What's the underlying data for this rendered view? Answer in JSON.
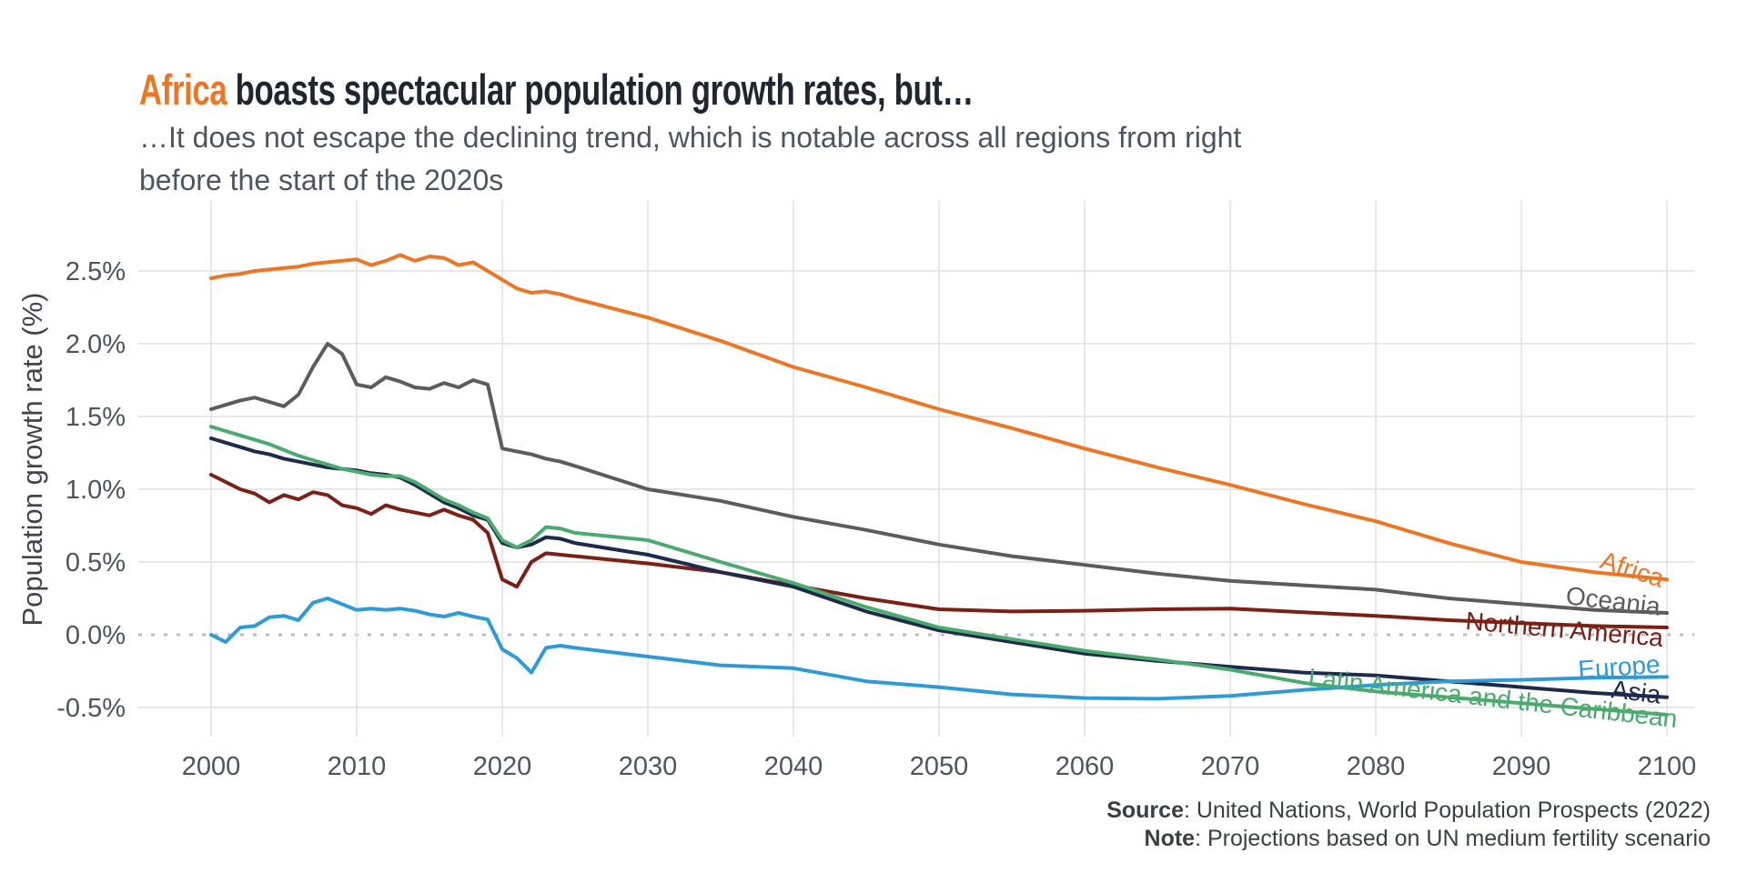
{
  "chart_data": {
    "type": "line",
    "title": {
      "highlight": "Africa",
      "rest": " boasts spectacular population growth rates, but…"
    },
    "subtitle_lines": [
      "…It does not escape the declining trend, which is notable across all regions from right",
      "before the start of the 2020s"
    ],
    "ylabel": "Population growth rate (%)",
    "xlabel": "",
    "x_range": [
      2000,
      2100
    ],
    "ylim": [
      -0.6,
      2.75
    ],
    "grid": true,
    "zero_line_value": 0.0,
    "legend_position": "labels at end of lines",
    "x_ticks": [
      {
        "value": 2000,
        "label": "2000"
      },
      {
        "value": 2010,
        "label": "2010"
      },
      {
        "value": 2020,
        "label": "2020"
      },
      {
        "value": 2030,
        "label": "2030"
      },
      {
        "value": 2040,
        "label": "2040"
      },
      {
        "value": 2050,
        "label": "2050"
      },
      {
        "value": 2060,
        "label": "2060"
      },
      {
        "value": 2070,
        "label": "2070"
      },
      {
        "value": 2080,
        "label": "2080"
      },
      {
        "value": 2090,
        "label": "2090"
      },
      {
        "value": 2100,
        "label": "2100"
      }
    ],
    "y_ticks": [
      {
        "value": 2.5,
        "label": "2.5%"
      },
      {
        "value": 2.0,
        "label": "2.0%"
      },
      {
        "value": 1.5,
        "label": "1.5%"
      },
      {
        "value": 1.0,
        "label": "1.0%"
      },
      {
        "value": 0.5,
        "label": "0.5%"
      },
      {
        "value": 0.0,
        "label": "0.0%"
      },
      {
        "value": -0.5,
        "label": "-0.5%"
      }
    ],
    "series": [
      {
        "name": "Africa",
        "color": "#ed7524",
        "points": [
          [
            2000,
            2.45
          ],
          [
            2001,
            2.47
          ],
          [
            2002,
            2.48
          ],
          [
            2003,
            2.5
          ],
          [
            2004,
            2.51
          ],
          [
            2005,
            2.52
          ],
          [
            2006,
            2.53
          ],
          [
            2007,
            2.55
          ],
          [
            2008,
            2.56
          ],
          [
            2009,
            2.57
          ],
          [
            2010,
            2.58
          ],
          [
            2011,
            2.54
          ],
          [
            2012,
            2.57
          ],
          [
            2013,
            2.61
          ],
          [
            2014,
            2.57
          ],
          [
            2015,
            2.6
          ],
          [
            2016,
            2.59
          ],
          [
            2017,
            2.54
          ],
          [
            2018,
            2.56
          ],
          [
            2019,
            2.5
          ],
          [
            2020,
            2.44
          ],
          [
            2021,
            2.38
          ],
          [
            2022,
            2.35
          ],
          [
            2023,
            2.36
          ],
          [
            2024,
            2.34
          ],
          [
            2025,
            2.31
          ],
          [
            2030,
            2.18
          ],
          [
            2035,
            2.02
          ],
          [
            2040,
            1.84
          ],
          [
            2045,
            1.7
          ],
          [
            2050,
            1.55
          ],
          [
            2055,
            1.42
          ],
          [
            2060,
            1.28
          ],
          [
            2065,
            1.15
          ],
          [
            2070,
            1.03
          ],
          [
            2075,
            0.9
          ],
          [
            2080,
            0.78
          ],
          [
            2085,
            0.63
          ],
          [
            2090,
            0.5
          ],
          [
            2095,
            0.43
          ],
          [
            2100,
            0.38
          ]
        ]
      },
      {
        "name": "Oceania",
        "color": "#5c5c5e",
        "points": [
          [
            2000,
            1.55
          ],
          [
            2001,
            1.58
          ],
          [
            2002,
            1.61
          ],
          [
            2003,
            1.63
          ],
          [
            2004,
            1.6
          ],
          [
            2005,
            1.57
          ],
          [
            2006,
            1.65
          ],
          [
            2007,
            1.84
          ],
          [
            2008,
            2.0
          ],
          [
            2009,
            1.93
          ],
          [
            2010,
            1.72
          ],
          [
            2011,
            1.7
          ],
          [
            2012,
            1.77
          ],
          [
            2013,
            1.74
          ],
          [
            2014,
            1.7
          ],
          [
            2015,
            1.69
          ],
          [
            2016,
            1.73
          ],
          [
            2017,
            1.7
          ],
          [
            2018,
            1.75
          ],
          [
            2019,
            1.72
          ],
          [
            2020,
            1.28
          ],
          [
            2021,
            1.26
          ],
          [
            2022,
            1.24
          ],
          [
            2023,
            1.21
          ],
          [
            2024,
            1.19
          ],
          [
            2025,
            1.16
          ],
          [
            2030,
            1.0
          ],
          [
            2035,
            0.92
          ],
          [
            2040,
            0.81
          ],
          [
            2045,
            0.72
          ],
          [
            2050,
            0.62
          ],
          [
            2055,
            0.54
          ],
          [
            2060,
            0.48
          ],
          [
            2065,
            0.42
          ],
          [
            2070,
            0.37
          ],
          [
            2075,
            0.34
          ],
          [
            2080,
            0.31
          ],
          [
            2085,
            0.25
          ],
          [
            2090,
            0.21
          ],
          [
            2095,
            0.17
          ],
          [
            2100,
            0.15
          ]
        ]
      },
      {
        "name": "Northern America",
        "color": "#7c2016",
        "points": [
          [
            2000,
            1.1
          ],
          [
            2001,
            1.05
          ],
          [
            2002,
            1.0
          ],
          [
            2003,
            0.97
          ],
          [
            2004,
            0.91
          ],
          [
            2005,
            0.96
          ],
          [
            2006,
            0.93
          ],
          [
            2007,
            0.98
          ],
          [
            2008,
            0.96
          ],
          [
            2009,
            0.89
          ],
          [
            2010,
            0.87
          ],
          [
            2011,
            0.83
          ],
          [
            2012,
            0.89
          ],
          [
            2013,
            0.86
          ],
          [
            2014,
            0.84
          ],
          [
            2015,
            0.82
          ],
          [
            2016,
            0.86
          ],
          [
            2017,
            0.82
          ],
          [
            2018,
            0.79
          ],
          [
            2019,
            0.7
          ],
          [
            2020,
            0.38
          ],
          [
            2021,
            0.33
          ],
          [
            2022,
            0.5
          ],
          [
            2023,
            0.56
          ],
          [
            2024,
            0.55
          ],
          [
            2025,
            0.54
          ],
          [
            2030,
            0.49
          ],
          [
            2035,
            0.43
          ],
          [
            2040,
            0.34
          ],
          [
            2045,
            0.25
          ],
          [
            2050,
            0.175
          ],
          [
            2055,
            0.16
          ],
          [
            2060,
            0.165
          ],
          [
            2065,
            0.175
          ],
          [
            2070,
            0.18
          ],
          [
            2075,
            0.155
          ],
          [
            2080,
            0.13
          ],
          [
            2085,
            0.1
          ],
          [
            2090,
            0.08
          ],
          [
            2095,
            0.06
          ],
          [
            2100,
            0.05
          ]
        ]
      },
      {
        "name": "Asia",
        "color": "#1b2a4d",
        "points": [
          [
            2000,
            1.35
          ],
          [
            2001,
            1.32
          ],
          [
            2002,
            1.29
          ],
          [
            2003,
            1.26
          ],
          [
            2004,
            1.24
          ],
          [
            2005,
            1.21
          ],
          [
            2006,
            1.19
          ],
          [
            2007,
            1.17
          ],
          [
            2008,
            1.15
          ],
          [
            2009,
            1.14
          ],
          [
            2010,
            1.13
          ],
          [
            2011,
            1.11
          ],
          [
            2012,
            1.1
          ],
          [
            2013,
            1.08
          ],
          [
            2014,
            1.03
          ],
          [
            2015,
            0.97
          ],
          [
            2016,
            0.91
          ],
          [
            2017,
            0.87
          ],
          [
            2018,
            0.82
          ],
          [
            2019,
            0.79
          ],
          [
            2020,
            0.63
          ],
          [
            2021,
            0.6
          ],
          [
            2022,
            0.62
          ],
          [
            2023,
            0.67
          ],
          [
            2024,
            0.66
          ],
          [
            2025,
            0.63
          ],
          [
            2030,
            0.55
          ],
          [
            2035,
            0.43
          ],
          [
            2040,
            0.33
          ],
          [
            2045,
            0.16
          ],
          [
            2050,
            0.03
          ],
          [
            2055,
            -0.05
          ],
          [
            2060,
            -0.13
          ],
          [
            2065,
            -0.18
          ],
          [
            2070,
            -0.22
          ],
          [
            2075,
            -0.26
          ],
          [
            2080,
            -0.28
          ],
          [
            2085,
            -0.32
          ],
          [
            2090,
            -0.36
          ],
          [
            2095,
            -0.4
          ],
          [
            2100,
            -0.43
          ]
        ]
      },
      {
        "name": "Latin America and the Caribbean",
        "color": "#4bab6f",
        "points": [
          [
            2000,
            1.43
          ],
          [
            2001,
            1.4
          ],
          [
            2002,
            1.37
          ],
          [
            2003,
            1.34
          ],
          [
            2004,
            1.31
          ],
          [
            2005,
            1.27
          ],
          [
            2006,
            1.23
          ],
          [
            2007,
            1.2
          ],
          [
            2008,
            1.17
          ],
          [
            2009,
            1.14
          ],
          [
            2010,
            1.12
          ],
          [
            2011,
            1.1
          ],
          [
            2012,
            1.09
          ],
          [
            2013,
            1.09
          ],
          [
            2014,
            1.05
          ],
          [
            2015,
            0.99
          ],
          [
            2016,
            0.93
          ],
          [
            2017,
            0.89
          ],
          [
            2018,
            0.84
          ],
          [
            2019,
            0.8
          ],
          [
            2020,
            0.65
          ],
          [
            2021,
            0.6
          ],
          [
            2022,
            0.65
          ],
          [
            2023,
            0.74
          ],
          [
            2024,
            0.73
          ],
          [
            2025,
            0.7
          ],
          [
            2030,
            0.65
          ],
          [
            2035,
            0.5
          ],
          [
            2040,
            0.355
          ],
          [
            2045,
            0.19
          ],
          [
            2050,
            0.05
          ],
          [
            2055,
            -0.03
          ],
          [
            2060,
            -0.11
          ],
          [
            2065,
            -0.17
          ],
          [
            2070,
            -0.24
          ],
          [
            2075,
            -0.33
          ],
          [
            2080,
            -0.39
          ],
          [
            2085,
            -0.43
          ],
          [
            2090,
            -0.47
          ],
          [
            2095,
            -0.51
          ],
          [
            2100,
            -0.55
          ]
        ]
      },
      {
        "name": "Europe",
        "color": "#2d9bd8",
        "points": [
          [
            2000,
            0.0
          ],
          [
            2001,
            -0.05
          ],
          [
            2002,
            0.05
          ],
          [
            2003,
            0.06
          ],
          [
            2004,
            0.12
          ],
          [
            2005,
            0.13
          ],
          [
            2006,
            0.1
          ],
          [
            2007,
            0.22
          ],
          [
            2008,
            0.25
          ],
          [
            2009,
            0.21
          ],
          [
            2010,
            0.17
          ],
          [
            2011,
            0.18
          ],
          [
            2012,
            0.17
          ],
          [
            2013,
            0.18
          ],
          [
            2014,
            0.165
          ],
          [
            2015,
            0.14
          ],
          [
            2016,
            0.125
          ],
          [
            2017,
            0.15
          ],
          [
            2018,
            0.125
          ],
          [
            2019,
            0.105
          ],
          [
            2020,
            -0.1
          ],
          [
            2021,
            -0.16
          ],
          [
            2022,
            -0.26
          ],
          [
            2023,
            -0.09
          ],
          [
            2024,
            -0.075
          ],
          [
            2025,
            -0.09
          ],
          [
            2030,
            -0.15
          ],
          [
            2035,
            -0.21
          ],
          [
            2040,
            -0.23
          ],
          [
            2045,
            -0.32
          ],
          [
            2050,
            -0.36
          ],
          [
            2055,
            -0.41
          ],
          [
            2060,
            -0.435
          ],
          [
            2065,
            -0.44
          ],
          [
            2070,
            -0.42
          ],
          [
            2075,
            -0.38
          ],
          [
            2080,
            -0.345
          ],
          [
            2085,
            -0.32
          ],
          [
            2090,
            -0.31
          ],
          [
            2095,
            -0.295
          ],
          [
            2100,
            -0.29
          ]
        ]
      }
    ],
    "source": {
      "label": "Source",
      "text": ": United Nations, World Population Prospects (2022)"
    },
    "note": {
      "label": "Note",
      "text": ": Projections based on UN medium fertility scenario"
    }
  },
  "colors": {
    "title_highlight": "#ed7524",
    "title_text": "#20262f",
    "subtitle_text": "#4d5560",
    "gridline": "#e8e8ea",
    "zero_line": "#bcbcbf",
    "background": "#ffffff"
  }
}
